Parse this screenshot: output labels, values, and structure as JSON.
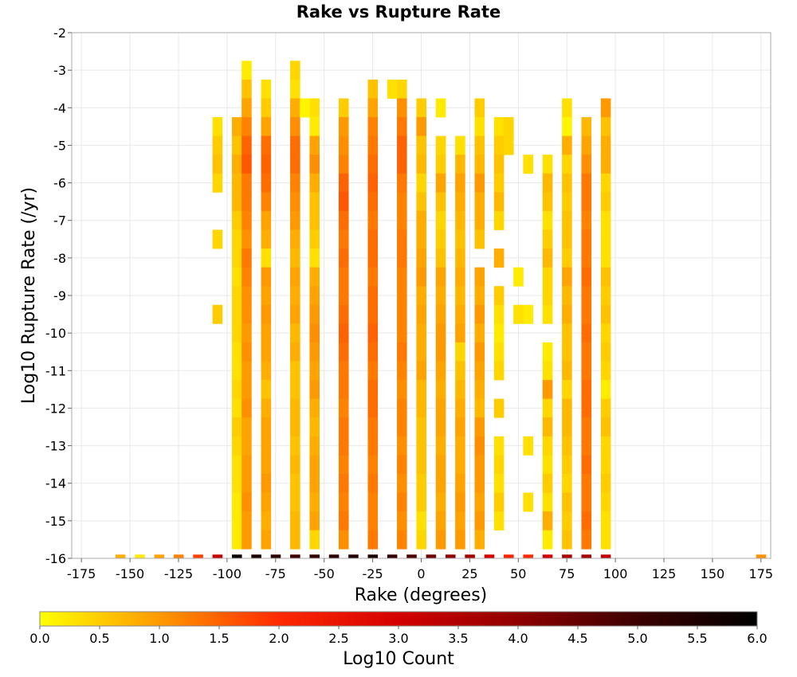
{
  "chart_data": {
    "type": "heatmap",
    "title": "Rake vs Rupture Rate",
    "xlabel": "Rake (degrees)",
    "ylabel": "Log10 Rupture Rate (/yr)",
    "colorbar_label": "Log10 Count",
    "xlim": [
      -180,
      180
    ],
    "ylim": [
      -16,
      -2
    ],
    "xticks": [
      -175,
      -150,
      -125,
      -100,
      -75,
      -50,
      -25,
      0,
      25,
      50,
      75,
      100,
      125,
      150,
      175
    ],
    "yticks": [
      -2,
      -3,
      -4,
      -5,
      -6,
      -7,
      -8,
      -9,
      -10,
      -11,
      -12,
      -13,
      -14,
      -15,
      -16
    ],
    "color_range": [
      0,
      6
    ],
    "colorbar_ticks": [
      "0.0",
      "0.5",
      "1.0",
      "1.5",
      "2.0",
      "2.5",
      "3.0",
      "3.5",
      "4.0",
      "4.5",
      "5.0",
      "5.5",
      "6.0"
    ],
    "colormap": [
      "#ffff00",
      "#ff9900",
      "#ff2a00",
      "#d40000",
      "#8f0000",
      "#3c0000",
      "#000000"
    ],
    "grid": true,
    "bin_width_x": 5,
    "bin_height_y": 0.5,
    "cells": [
      {
        "rake": -95,
        "rates": [
          -4.5,
          -5,
          -5.5,
          -6,
          -6.5,
          -7,
          -7.5,
          -8,
          -8.5,
          -9,
          -9.5,
          -10,
          -10.5,
          -11,
          -11.5,
          -12,
          -12.5,
          -13,
          -13.5,
          -14,
          -14.5,
          -15,
          -15.5
        ],
        "values": [
          0.8,
          0.6,
          0.8,
          0.7,
          0.7,
          0.5,
          0.4,
          0.4,
          0.3,
          0.4,
          0.4,
          0.4,
          0.3,
          0.3,
          0.4,
          0.3,
          0.5,
          0.4,
          0.3,
          0.3,
          0.2,
          0.2,
          0.2
        ]
      },
      {
        "rake": -90,
        "rates": [
          -3,
          -3.5,
          -4,
          -4.5,
          -5,
          -5.5,
          -6,
          -6.5,
          -7,
          -7.5,
          -8,
          -8.5,
          -9,
          -9.5,
          -10,
          -10.5,
          -11,
          -11.5,
          -12,
          -12.5,
          -13,
          -13.5,
          -14,
          -14.5,
          -15,
          -15.5
        ],
        "values": [
          0.2,
          0.6,
          0.9,
          1.2,
          1.5,
          1.6,
          1.3,
          1.3,
          1.2,
          1.1,
          1.3,
          1.2,
          1.1,
          1.1,
          1.0,
          1.1,
          1.0,
          1.0,
          1.1,
          0.9,
          0.9,
          1.0,
          1.0,
          1.1,
          1.0,
          1.0
        ]
      },
      {
        "rake": -80,
        "rates": [
          -3.5,
          -4,
          -4.5,
          -5,
          -5.5,
          -6,
          -6.5,
          -7,
          -7.5,
          -8,
          -8.5,
          -9,
          -9.5,
          -10,
          -10.5,
          -11,
          -11.5,
          -12,
          -12.5,
          -13,
          -13.5,
          -14,
          -14.5,
          -15,
          -15.5
        ],
        "values": [
          0.3,
          0.5,
          0.9,
          1.4,
          1.5,
          1.4,
          1.2,
          0.9,
          0.8,
          0.3,
          1.0,
          0.9,
          1.0,
          0.9,
          0.9,
          0.8,
          0.6,
          0.8,
          0.9,
          0.9,
          0.9,
          1.0,
          0.9,
          0.8,
          0.9
        ]
      },
      {
        "rake": -65,
        "rates": [
          -3,
          -3.5,
          -4,
          -4.5,
          -5,
          -5.5,
          -6,
          -6.5,
          -7,
          -7.5,
          -8,
          -8.5,
          -9,
          -9.5,
          -10,
          -10.5,
          -11,
          -11.5,
          -12,
          -12.5,
          -13,
          -13.5,
          -14,
          -14.5,
          -15,
          -15.5
        ],
        "values": [
          0.4,
          0.3,
          0.8,
          1.1,
          1.4,
          1.4,
          1.2,
          1.1,
          1.0,
          0.8,
          0.7,
          0.9,
          0.8,
          0.9,
          0.7,
          0.8,
          0.6,
          0.6,
          0.7,
          0.7,
          0.6,
          0.7,
          0.6,
          0.6,
          0.7,
          0.7
        ]
      },
      {
        "rake": -55,
        "rates": [
          -4,
          -4.5,
          -5,
          -5.5,
          -6,
          -6.5,
          -7,
          -7.5,
          -8,
          -8.5,
          -9,
          -9.5,
          -10,
          -10.5,
          -11,
          -11.5,
          -12,
          -12.5,
          -13,
          -13.5,
          -14,
          -14.5,
          -15,
          -15.5
        ],
        "values": [
          0.3,
          0.2,
          0.9,
          1.1,
          0.8,
          0.6,
          0.6,
          0.5,
          0.3,
          0.8,
          0.9,
          1.0,
          1.1,
          1.0,
          0.9,
          1.0,
          0.8,
          0.7,
          0.8,
          0.9,
          0.9,
          0.8,
          0.9,
          0.4
        ]
      },
      {
        "rake": -40,
        "rates": [
          -4,
          -4.5,
          -5,
          -5.5,
          -6,
          -6.5,
          -7,
          -7.5,
          -8,
          -8.5,
          -9,
          -9.5,
          -10,
          -10.5,
          -11,
          -11.5,
          -12,
          -12.5,
          -13,
          -13.5,
          -14,
          -14.5,
          -15,
          -15.5
        ],
        "values": [
          0.5,
          1.0,
          1.1,
          1.2,
          1.5,
          1.6,
          1.4,
          1.3,
          1.4,
          1.3,
          1.3,
          1.4,
          1.5,
          1.4,
          1.3,
          1.3,
          1.2,
          1.3,
          1.3,
          1.2,
          1.3,
          1.2,
          1.3,
          1.1
        ]
      },
      {
        "rake": -25,
        "rates": [
          -3.5,
          -4,
          -4.5,
          -5,
          -5.5,
          -6,
          -6.5,
          -7,
          -7.5,
          -8,
          -8.5,
          -9,
          -9.5,
          -10,
          -10.5,
          -11,
          -11.5,
          -12,
          -12.5,
          -13,
          -13.5,
          -14,
          -14.5,
          -15,
          -15.5
        ],
        "values": [
          0.6,
          0.9,
          1.2,
          1.3,
          1.4,
          1.5,
          1.4,
          1.3,
          1.4,
          1.4,
          1.3,
          1.4,
          1.4,
          1.5,
          1.4,
          1.3,
          1.4,
          1.4,
          1.3,
          1.3,
          1.2,
          1.3,
          1.2,
          1.2,
          1.3
        ]
      },
      {
        "rake": -10,
        "rates": [
          -3.5,
          -4,
          -4.5,
          -5,
          -5.5,
          -6,
          -6.5,
          -7,
          -7.5,
          -8,
          -8.5,
          -9,
          -9.5,
          -10,
          -10.5,
          -11,
          -11.5,
          -12,
          -12.5,
          -13,
          -13.5,
          -14,
          -14.5,
          -15,
          -15.5
        ],
        "values": [
          0.4,
          1.1,
          1.3,
          1.5,
          1.5,
          1.3,
          1.2,
          1.2,
          1.3,
          1.3,
          1.2,
          1.2,
          1.2,
          1.2,
          1.3,
          1.2,
          1.1,
          1.2,
          1.2,
          1.1,
          1.2,
          1.1,
          1.2,
          1.1,
          1.2
        ]
      },
      {
        "rake": 0,
        "rates": [
          -4,
          -4.5,
          -5,
          -5.5,
          -6,
          -6.5,
          -7,
          -7.5,
          -8,
          -8.5,
          -9,
          -9.5,
          -10,
          -10.5,
          -11,
          -11.5,
          -12,
          -12.5,
          -13,
          -13.5,
          -14,
          -14.5,
          -15,
          -15.5
        ],
        "values": [
          0.5,
          1.0,
          0.6,
          0.7,
          0.4,
          0.6,
          0.8,
          0.8,
          0.9,
          1.0,
          0.8,
          0.9,
          0.8,
          0.8,
          0.9,
          0.7,
          0.7,
          0.6,
          0.6,
          0.6,
          0.5,
          0.5,
          0.3,
          0.4
        ]
      },
      {
        "rake": 10,
        "rates": [
          -4,
          -5,
          -5.5,
          -6,
          -6.5,
          -7,
          -7.5,
          -8,
          -8.5,
          -9,
          -9.5,
          -10,
          -10.5,
          -11,
          -11.5,
          -12,
          -12.5,
          -13,
          -13.5,
          -14,
          -14.5,
          -15,
          -15.5
        ],
        "values": [
          0.2,
          0.4,
          0.5,
          0.9,
          0.6,
          0.4,
          0.5,
          0.6,
          0.9,
          0.8,
          0.9,
          1.0,
          1.0,
          0.9,
          0.8,
          0.9,
          0.9,
          0.8,
          0.9,
          0.9,
          0.8,
          0.9,
          1.0
        ]
      },
      {
        "rake": 20,
        "rates": [
          -5,
          -5.5,
          -6,
          -6.5,
          -7,
          -7.5,
          -8,
          -8.5,
          -9,
          -9.5,
          -10,
          -10.5,
          -11,
          -11.5,
          -12,
          -12.5,
          -13,
          -13.5,
          -14,
          -14.5,
          -15,
          -15.5
        ],
        "values": [
          0.3,
          0.7,
          0.9,
          0.8,
          0.7,
          0.6,
          0.7,
          0.8,
          0.7,
          0.8,
          0.9,
          0.4,
          0.6,
          0.7,
          0.8,
          0.9,
          0.8,
          0.8,
          0.9,
          1.0,
          0.9,
          1.0
        ]
      },
      {
        "rake": 30,
        "rates": [
          -4,
          -4.5,
          -5,
          -5.5,
          -6,
          -6.5,
          -7,
          -7.5,
          -8.5,
          -9,
          -9.5,
          -10,
          -10.5,
          -11,
          -11.5,
          -12,
          -12.5,
          -13,
          -13.5,
          -14,
          -14.5,
          -15,
          -15.5
        ],
        "values": [
          0.5,
          0.3,
          0.6,
          0.7,
          1.0,
          0.8,
          0.8,
          0.6,
          0.9,
          0.8,
          1.0,
          0.8,
          1.0,
          0.9,
          0.8,
          0.7,
          1.0,
          1.1,
          1.0,
          1.0,
          0.9,
          1.0,
          0.8
        ]
      },
      {
        "rake": 40,
        "rates": [
          -4.5,
          -5,
          -5.5,
          -6,
          -6.5,
          -7,
          -8,
          -9,
          -9.5,
          -10,
          -10.5,
          -11,
          -12,
          -13,
          -13.5,
          -14,
          -14.5,
          -15
        ],
        "values": [
          0.3,
          0.5,
          0.6,
          0.5,
          0.7,
          0.4,
          0.8,
          0.5,
          0.3,
          0.2,
          0.3,
          0.4,
          0.5,
          0.3,
          0.4,
          0.3,
          0.5,
          0.3
        ]
      },
      {
        "rake": 75,
        "rates": [
          -4,
          -4.5,
          -5,
          -5.5,
          -6,
          -6.5,
          -7,
          -7.5,
          -8,
          -8.5,
          -9,
          -9.5,
          -10,
          -10.5,
          -11,
          -11.5,
          -12,
          -12.5,
          -13,
          -13.5,
          -14,
          -14.5,
          -15,
          -15.5
        ],
        "values": [
          0.3,
          0.1,
          0.8,
          0.4,
          0.6,
          0.5,
          0.6,
          0.6,
          0.5,
          0.9,
          0.7,
          0.8,
          0.6,
          0.6,
          0.7,
          0.4,
          0.7,
          0.7,
          0.6,
          0.5,
          0.4,
          0.6,
          0.5,
          0.6
        ]
      },
      {
        "rake": 85,
        "rates": [
          -4.5,
          -5,
          -5.5,
          -6,
          -6.5,
          -7,
          -7.5,
          -8,
          -8.5,
          -9,
          -9.5,
          -10,
          -10.5,
          -11,
          -11.5,
          -12,
          -12.5,
          -13,
          -13.5,
          -14,
          -14.5,
          -15,
          -15.5
        ],
        "values": [
          0.7,
          0.9,
          1.1,
          1.3,
          1.3,
          1.2,
          1.3,
          1.3,
          1.4,
          1.3,
          1.3,
          1.4,
          1.3,
          1.3,
          1.4,
          1.4,
          1.3,
          1.3,
          1.4,
          1.3,
          1.3,
          1.4,
          1.3
        ]
      },
      {
        "rake": 95,
        "rates": [
          -4,
          -4.5,
          -5,
          -5.5,
          -6,
          -6.5,
          -7,
          -7.5,
          -8,
          -8.5,
          -9,
          -9.5,
          -10,
          -10.5,
          -11,
          -11.5,
          -12,
          -12.5,
          -13,
          -13.5,
          -14,
          -14.5,
          -15,
          -15.5
        ],
        "values": [
          1.0,
          0.6,
          0.8,
          0.8,
          0.4,
          0.5,
          0.3,
          0.3,
          0.3,
          0.6,
          0.5,
          0.6,
          0.4,
          0.5,
          0.4,
          0.2,
          0.5,
          0.6,
          0.4,
          0.4,
          0.5,
          0.4,
          0.3,
          0.3
        ]
      }
    ],
    "extra_cells": [
      {
        "rake": -15,
        "rate": -3.5,
        "value": 0.3
      },
      {
        "rake": -60,
        "rate": -4,
        "value": 0.1
      },
      {
        "rake": -105,
        "rate": -4.5,
        "value": 0.3
      },
      {
        "rake": -105,
        "rate": -5,
        "value": 0.5
      },
      {
        "rake": -105,
        "rate": -5.5,
        "value": 0.6
      },
      {
        "rake": -105,
        "rate": -6,
        "value": 0.4
      },
      {
        "rake": -105,
        "rate": -7.5,
        "value": 0.4
      },
      {
        "rake": -105,
        "rate": -9.5,
        "value": 0.5
      },
      {
        "rake": 45,
        "rate": -4.5,
        "value": 0.4
      },
      {
        "rake": 45,
        "rate": -5,
        "value": 0.4
      },
      {
        "rake": 50,
        "rate": -8.5,
        "value": 0.2
      },
      {
        "rake": 50,
        "rate": -9.5,
        "value": 0.3
      },
      {
        "rake": 55,
        "rate": -5.5,
        "value": 0.3
      },
      {
        "rake": 55,
        "rate": -9.5,
        "value": 0.2
      },
      {
        "rake": 55,
        "rate": -13,
        "value": 0.3
      },
      {
        "rake": 55,
        "rate": -14.5,
        "value": 0.3
      },
      {
        "rake": 65,
        "rate": -5.5,
        "value": 0.3
      },
      {
        "rake": 65,
        "rate": -6,
        "value": 0.7
      },
      {
        "rake": 65,
        "rate": -6.5,
        "value": 0.6
      },
      {
        "rake": 65,
        "rate": -7,
        "value": 0.3
      },
      {
        "rake": 65,
        "rate": -7.5,
        "value": 0.5
      },
      {
        "rake": 65,
        "rate": -8,
        "value": 0.7
      },
      {
        "rake": 65,
        "rate": -8.5,
        "value": 0.4
      },
      {
        "rake": 65,
        "rate": -9,
        "value": 0.4
      },
      {
        "rake": 65,
        "rate": -9.5,
        "value": 0.3
      },
      {
        "rake": 65,
        "rate": -10.5,
        "value": 0.2
      },
      {
        "rake": 65,
        "rate": -11,
        "value": 0.3
      },
      {
        "rake": 65,
        "rate": -11.5,
        "value": 1.0
      },
      {
        "rake": 65,
        "rate": -12,
        "value": 0.4
      },
      {
        "rake": 65,
        "rate": -12.5,
        "value": 0.7
      },
      {
        "rake": 65,
        "rate": -13,
        "value": 0.4
      },
      {
        "rake": 65,
        "rate": -13.5,
        "value": 0.3
      },
      {
        "rake": 65,
        "rate": -14,
        "value": 0.5
      },
      {
        "rake": 65,
        "rate": -14.5,
        "value": 0.3
      },
      {
        "rake": 65,
        "rate": -15,
        "value": 0.8
      },
      {
        "rake": 65,
        "rate": -15.5,
        "value": 0.2
      }
    ],
    "bottom_row": {
      "rate": -16,
      "rakes": [
        -155,
        -145,
        -135,
        -125,
        -115,
        -105,
        -95,
        -85,
        -75,
        -65,
        -55,
        -45,
        -35,
        -25,
        -15,
        -5,
        5,
        15,
        25,
        35,
        45,
        55,
        65,
        75,
        85,
        95,
        175
      ],
      "values": [
        0.8,
        0.2,
        0.9,
        1.2,
        1.8,
        3.2,
        5.8,
        5.6,
        5.3,
        5.0,
        5.2,
        5.3,
        5.5,
        5.6,
        5.2,
        4.8,
        4.4,
        4.0,
        3.7,
        3.0,
        2.1,
        2.0,
        3.0,
        3.6,
        3.7,
        3.3,
        1.1
      ]
    }
  }
}
